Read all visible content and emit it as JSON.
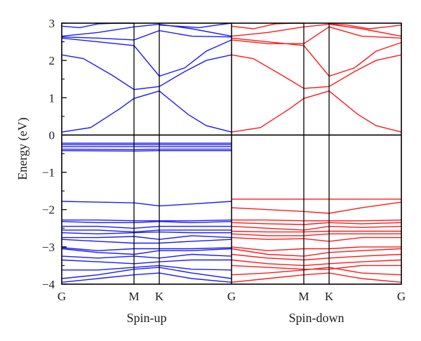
{
  "chart_data": {
    "type": "line",
    "title": "",
    "ylabel": "Energy (eV)",
    "ylim": [
      -4,
      3
    ],
    "yticks": [
      "3",
      "2",
      "1",
      "0",
      "−1",
      "−2",
      "−3",
      "−4"
    ],
    "k_path": [
      "G",
      "M",
      "K",
      "G"
    ],
    "k_positions": [
      0,
      1,
      1.35,
      2.35
    ],
    "grid": false,
    "panels": [
      {
        "name": "Spin-up",
        "color": "#1a1aff",
        "series": [
          {
            "x": [
              0,
              0.4,
              0.8,
              1.0,
              1.35,
              1.75,
              2.0,
              2.35
            ],
            "y": [
              0.08,
              0.2,
              0.7,
              0.98,
              1.18,
              0.55,
              0.25,
              0.08
            ]
          },
          {
            "x": [
              0,
              0.3,
              0.7,
              1.0,
              1.35,
              1.7,
              2.0,
              2.35
            ],
            "y": [
              2.15,
              2.05,
              1.6,
              1.22,
              1.3,
              1.7,
              2.0,
              2.15
            ]
          },
          {
            "x": [
              0,
              0.5,
              1.0,
              1.35,
              1.7,
              2.0,
              2.35
            ],
            "y": [
              2.6,
              2.5,
              2.4,
              1.58,
              1.8,
              2.25,
              2.55
            ]
          },
          {
            "x": [
              0,
              0.5,
              1.0,
              1.35,
              1.8,
              2.35
            ],
            "y": [
              2.63,
              2.6,
              2.55,
              2.8,
              2.65,
              2.63
            ]
          },
          {
            "x": [
              0,
              0.5,
              1.0,
              1.35,
              1.8,
              2.35
            ],
            "y": [
              2.65,
              2.75,
              2.9,
              2.97,
              2.85,
              2.65
            ]
          },
          {
            "x": [
              0,
              0.25,
              0.5,
              0.75,
              1.0
            ],
            "y": [
              2.92,
              2.88,
              2.98,
              3.0,
              3.0
            ]
          },
          {
            "x": [
              1.35,
              1.6,
              1.9,
              2.15,
              2.35
            ],
            "y": [
              2.95,
              2.92,
              2.88,
              2.95,
              3.0
            ]
          },
          {
            "x": [
              0,
              2.35
            ],
            "y": [
              -0.22,
              -0.22
            ]
          },
          {
            "x": [
              0,
              2.35
            ],
            "y": [
              -0.26,
              -0.26
            ]
          },
          {
            "x": [
              0,
              2.35
            ],
            "y": [
              -0.31,
              -0.31
            ]
          },
          {
            "x": [
              0,
              1.0,
              1.35,
              2.35
            ],
            "y": [
              -0.38,
              -0.39,
              -0.38,
              -0.38
            ]
          },
          {
            "x": [
              0,
              1.0,
              1.35,
              2.35
            ],
            "y": [
              -0.42,
              -0.43,
              -0.42,
              -0.42
            ]
          },
          {
            "x": [
              0,
              0.5,
              1.0,
              1.35,
              1.8,
              2.35
            ],
            "y": [
              -1.78,
              -1.8,
              -1.82,
              -1.9,
              -1.85,
              -1.78
            ]
          },
          {
            "x": [
              0,
              0.5,
              1.0,
              1.35,
              1.8,
              2.35
            ],
            "y": [
              -2.28,
              -2.28,
              -2.3,
              -2.3,
              -2.3,
              -2.28
            ]
          },
          {
            "x": [
              0,
              0.5,
              1.0,
              1.35,
              1.8,
              2.35
            ],
            "y": [
              -2.32,
              -2.35,
              -2.35,
              -2.32,
              -2.35,
              -2.32
            ]
          },
          {
            "x": [
              0,
              0.5,
              1.0,
              1.35,
              1.8,
              2.35
            ],
            "y": [
              -2.45,
              -2.45,
              -2.5,
              -2.45,
              -2.45,
              -2.45
            ]
          },
          {
            "x": [
              0,
              0.5,
              1.0,
              1.35,
              1.8,
              2.35
            ],
            "y": [
              -2.55,
              -2.55,
              -2.6,
              -2.55,
              -2.55,
              -2.55
            ]
          },
          {
            "x": [
              0,
              0.5,
              1.0,
              1.35,
              1.8,
              2.35
            ],
            "y": [
              -2.62,
              -2.65,
              -2.62,
              -2.6,
              -2.62,
              -2.62
            ]
          },
          {
            "x": [
              0,
              0.5,
              1.0,
              1.35,
              1.8,
              2.35
            ],
            "y": [
              -2.75,
              -2.75,
              -2.72,
              -2.8,
              -2.7,
              -2.75
            ]
          },
          {
            "x": [
              0,
              0.5,
              1.0,
              1.35,
              1.8,
              2.35
            ],
            "y": [
              -2.8,
              -2.85,
              -2.9,
              -2.9,
              -2.85,
              -2.8
            ]
          },
          {
            "x": [
              0,
              0.5,
              1.0,
              1.35,
              1.8,
              2.35
            ],
            "y": [
              -3.02,
              -3.1,
              -3.05,
              -3.05,
              -3.05,
              -3.02
            ]
          },
          {
            "x": [
              0,
              0.5,
              1.0,
              1.35,
              1.8,
              2.35
            ],
            "y": [
              -3.05,
              -3.15,
              -3.2,
              -3.1,
              -3.1,
              -3.05
            ]
          },
          {
            "x": [
              0,
              0.5,
              1.0,
              1.35,
              1.8,
              2.35
            ],
            "y": [
              -3.25,
              -3.3,
              -3.25,
              -3.3,
              -3.2,
              -3.25
            ]
          },
          {
            "x": [
              0,
              0.5,
              1.0,
              1.35,
              1.8,
              2.35
            ],
            "y": [
              -3.35,
              -3.4,
              -3.45,
              -3.4,
              -3.35,
              -3.35
            ]
          },
          {
            "x": [
              0,
              0.5,
              1.0,
              1.35,
              1.8,
              2.35
            ],
            "y": [
              -3.62,
              -3.62,
              -3.55,
              -3.5,
              -3.6,
              -3.62
            ]
          },
          {
            "x": [
              0,
              0.5,
              1.0,
              1.35,
              1.8,
              2.35
            ],
            "y": [
              -3.85,
              -3.75,
              -3.6,
              -3.55,
              -3.7,
              -3.85
            ]
          },
          {
            "x": [
              0,
              0.5,
              1.0,
              1.35,
              1.8,
              2.35
            ],
            "y": [
              -3.95,
              -3.85,
              -3.75,
              -3.7,
              -3.85,
              -3.95
            ]
          }
        ]
      },
      {
        "name": "Spin-down",
        "color": "#ff1a1a",
        "series": [
          {
            "x": [
              0,
              0.4,
              0.8,
              1.0,
              1.35,
              1.75,
              2.0,
              2.35
            ],
            "y": [
              0.08,
              0.2,
              0.7,
              0.98,
              1.18,
              0.55,
              0.25,
              0.08
            ]
          },
          {
            "x": [
              0,
              0.3,
              0.7,
              1.0,
              1.35,
              1.7,
              2.0,
              2.35
            ],
            "y": [
              2.15,
              2.05,
              1.6,
              1.25,
              1.3,
              1.7,
              2.0,
              2.15
            ]
          },
          {
            "x": [
              0,
              0.5,
              1.0,
              1.35,
              1.7,
              2.0,
              2.35
            ],
            "y": [
              2.6,
              2.5,
              2.4,
              1.58,
              1.8,
              2.25,
              2.48
            ]
          },
          {
            "x": [
              0,
              0.5,
              1.0,
              1.35,
              1.8,
              2.35
            ],
            "y": [
              2.55,
              2.45,
              2.45,
              2.9,
              2.65,
              2.6
            ]
          },
          {
            "x": [
              0,
              0.5,
              1.0,
              1.35,
              1.8,
              2.35
            ],
            "y": [
              2.65,
              2.75,
              2.9,
              2.97,
              2.85,
              2.65
            ]
          },
          {
            "x": [
              0,
              0.3,
              0.6,
              0.85,
              1.0
            ],
            "y": [
              2.92,
              2.85,
              2.98,
              3.0,
              3.0
            ]
          },
          {
            "x": [
              1.35,
              1.6,
              1.9,
              2.15,
              2.35
            ],
            "y": [
              2.98,
              2.95,
              2.85,
              2.9,
              2.95
            ]
          },
          {
            "x": [
              0,
              0.5,
              1.0,
              1.35,
              1.8,
              2.35
            ],
            "y": [
              -1.72,
              -1.72,
              -1.72,
              -1.72,
              -1.72,
              -1.72
            ]
          },
          {
            "x": [
              0,
              0.5,
              1.0,
              1.35,
              1.8,
              2.35
            ],
            "y": [
              -1.95,
              -2.0,
              -2.05,
              -2.1,
              -1.95,
              -1.8
            ]
          },
          {
            "x": [
              0,
              0.5,
              1.0,
              1.35,
              1.8,
              2.35
            ],
            "y": [
              -2.28,
              -2.28,
              -2.3,
              -2.3,
              -2.3,
              -2.28
            ]
          },
          {
            "x": [
              0,
              0.5,
              1.0,
              1.35,
              1.8,
              2.35
            ],
            "y": [
              -2.35,
              -2.38,
              -2.4,
              -2.35,
              -2.38,
              -2.35
            ]
          },
          {
            "x": [
              0,
              0.5,
              1.0,
              1.35,
              1.8,
              2.35
            ],
            "y": [
              -2.45,
              -2.5,
              -2.55,
              -2.45,
              -2.48,
              -2.45
            ]
          },
          {
            "x": [
              0,
              0.5,
              1.0,
              1.35,
              1.8,
              2.35
            ],
            "y": [
              -2.58,
              -2.6,
              -2.6,
              -2.58,
              -2.58,
              -2.58
            ]
          },
          {
            "x": [
              0,
              0.5,
              1.0,
              1.35,
              1.8,
              2.35
            ],
            "y": [
              -2.65,
              -2.7,
              -2.7,
              -2.65,
              -2.65,
              -2.65
            ]
          },
          {
            "x": [
              0,
              0.5,
              1.0,
              1.35,
              1.8,
              2.35
            ],
            "y": [
              -2.75,
              -2.8,
              -2.78,
              -2.85,
              -2.75,
              -2.75
            ]
          },
          {
            "x": [
              0,
              0.5,
              1.0,
              1.35,
              1.8,
              2.35
            ],
            "y": [
              -3.0,
              -3.1,
              -3.05,
              -3.05,
              -3.0,
              -3.0
            ]
          },
          {
            "x": [
              0,
              0.5,
              1.0,
              1.35,
              1.8,
              2.35
            ],
            "y": [
              -3.05,
              -3.2,
              -3.25,
              -3.15,
              -3.1,
              -3.05
            ]
          },
          {
            "x": [
              0,
              0.5,
              1.0,
              1.35,
              1.8,
              2.35
            ],
            "y": [
              -3.2,
              -3.3,
              -3.35,
              -3.3,
              -3.25,
              -3.2
            ]
          },
          {
            "x": [
              0,
              0.5,
              1.0,
              1.35,
              1.8,
              2.35
            ],
            "y": [
              -3.35,
              -3.45,
              -3.5,
              -3.45,
              -3.4,
              -3.35
            ]
          },
          {
            "x": [
              0,
              0.5,
              1.0,
              1.35,
              1.8,
              2.35
            ],
            "y": [
              -3.5,
              -3.55,
              -3.6,
              -3.6,
              -3.5,
              -3.5
            ]
          },
          {
            "x": [
              0,
              0.5,
              1.0,
              1.35,
              1.8,
              2.35
            ],
            "y": [
              -3.75,
              -3.7,
              -3.62,
              -3.55,
              -3.7,
              -3.75
            ]
          },
          {
            "x": [
              0,
              0.5,
              1.0,
              1.35,
              1.8,
              2.35
            ],
            "y": [
              -3.95,
              -3.85,
              -3.75,
              -3.7,
              -3.85,
              -3.95
            ]
          }
        ]
      }
    ]
  }
}
